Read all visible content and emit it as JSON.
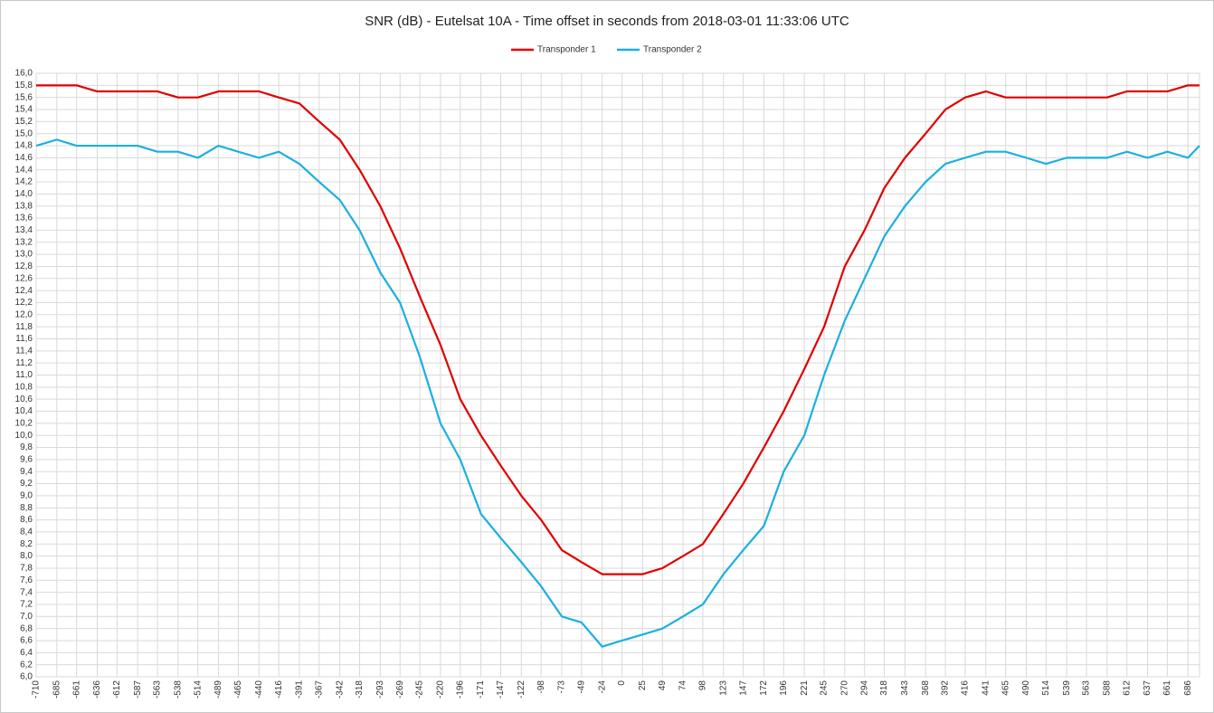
{
  "chart_data": {
    "type": "line",
    "title": "SNR (dB) - Eutelsat 10A - Time offset in seconds from 2018-03-01 11:33:06 UTC",
    "x": [
      -710,
      -685,
      -661,
      -636,
      -612,
      -587,
      -563,
      -538,
      -514,
      -489,
      -465,
      -440,
      -416,
      -391,
      -367,
      -342,
      -318,
      -293,
      -269,
      -245,
      -220,
      -196,
      -171,
      -147,
      -122,
      -98,
      -73,
      -49,
      -24,
      0,
      25,
      49,
      74,
      98,
      123,
      147,
      172,
      196,
      221,
      245,
      270,
      294,
      318,
      343,
      368,
      392,
      416,
      441,
      465,
      490,
      514,
      539,
      563,
      588,
      612,
      637,
      661,
      686,
      700
    ],
    "series": [
      {
        "name": "Transponder 1",
        "color": "#e00000",
        "values": [
          15.8,
          15.8,
          15.8,
          15.7,
          15.7,
          15.7,
          15.7,
          15.6,
          15.6,
          15.7,
          15.7,
          15.7,
          15.6,
          15.5,
          15.2,
          14.9,
          14.4,
          13.8,
          13.1,
          12.3,
          11.5,
          10.6,
          10.0,
          9.5,
          9.0,
          8.6,
          8.1,
          7.9,
          7.7,
          7.7,
          7.7,
          7.8,
          8.0,
          8.2,
          8.7,
          9.2,
          9.8,
          10.4,
          11.1,
          11.8,
          12.8,
          13.4,
          14.1,
          14.6,
          15.0,
          15.4,
          15.6,
          15.7,
          15.6,
          15.6,
          15.6,
          15.6,
          15.6,
          15.6,
          15.7,
          15.7,
          15.7,
          15.8,
          15.8
        ]
      },
      {
        "name": "Transponder 2",
        "color": "#1ab0e0",
        "values": [
          14.8,
          14.9,
          14.8,
          14.8,
          14.8,
          14.8,
          14.7,
          14.7,
          14.6,
          14.8,
          14.7,
          14.6,
          14.7,
          14.5,
          14.2,
          13.9,
          13.4,
          12.7,
          12.2,
          11.3,
          10.2,
          9.6,
          8.7,
          8.3,
          7.9,
          7.5,
          7.0,
          6.9,
          6.5,
          6.6,
          6.7,
          6.8,
          7.0,
          7.2,
          7.7,
          8.1,
          8.5,
          9.4,
          10.0,
          11.0,
          11.9,
          12.6,
          13.3,
          13.8,
          14.2,
          14.5,
          14.6,
          14.7,
          14.7,
          14.6,
          14.5,
          14.6,
          14.6,
          14.6,
          14.7,
          14.6,
          14.7,
          14.6,
          14.8
        ]
      }
    ],
    "xlim": [
      -710,
      700
    ],
    "xticks": [
      -710,
      -685,
      -661,
      -636,
      -612,
      -587,
      -563,
      -538,
      -514,
      -489,
      -465,
      -440,
      -416,
      -391,
      -367,
      -342,
      -318,
      -293,
      -269,
      -245,
      -220,
      -196,
      -171,
      -147,
      -122,
      -98,
      -73,
      -49,
      -24,
      0,
      25,
      49,
      74,
      98,
      123,
      147,
      172,
      196,
      221,
      245,
      270,
      294,
      318,
      343,
      368,
      392,
      416,
      441,
      465,
      490,
      514,
      539,
      563,
      588,
      612,
      637,
      661,
      686
    ],
    "ylim": [
      6.0,
      16.0
    ],
    "yticks": [
      {
        "value": 6.0,
        "label": "6,0"
      },
      {
        "value": 6.2,
        "label": "6,2"
      },
      {
        "value": 6.4,
        "label": "6,4"
      },
      {
        "value": 6.6,
        "label": "6,6"
      },
      {
        "value": 6.8,
        "label": "6,8"
      },
      {
        "value": 7.0,
        "label": "7,0"
      },
      {
        "value": 7.2,
        "label": "7,2"
      },
      {
        "value": 7.4,
        "label": "7,4"
      },
      {
        "value": 7.6,
        "label": "7,6"
      },
      {
        "value": 7.8,
        "label": "7,8"
      },
      {
        "value": 8.0,
        "label": "8,0"
      },
      {
        "value": 8.2,
        "label": "8,2"
      },
      {
        "value": 8.4,
        "label": "8,4"
      },
      {
        "value": 8.6,
        "label": "8,6"
      },
      {
        "value": 8.8,
        "label": "8,8"
      },
      {
        "value": 9.0,
        "label": "9,0"
      },
      {
        "value": 9.2,
        "label": "9,2"
      },
      {
        "value": 9.4,
        "label": "9,4"
      },
      {
        "value": 9.6,
        "label": "9,6"
      },
      {
        "value": 9.8,
        "label": "9,8"
      },
      {
        "value": 10.0,
        "label": "10,0"
      },
      {
        "value": 10.2,
        "label": "10,2"
      },
      {
        "value": 10.4,
        "label": "10,4"
      },
      {
        "value": 10.6,
        "label": "10,6"
      },
      {
        "value": 10.8,
        "label": "10,8"
      },
      {
        "value": 11.0,
        "label": "11,0"
      },
      {
        "value": 11.2,
        "label": "11,2"
      },
      {
        "value": 11.4,
        "label": "11,4"
      },
      {
        "value": 11.6,
        "label": "11,6"
      },
      {
        "value": 11.8,
        "label": "11,8"
      },
      {
        "value": 12.0,
        "label": "12,0"
      },
      {
        "value": 12.2,
        "label": "12,2"
      },
      {
        "value": 12.4,
        "label": "12,4"
      },
      {
        "value": 12.6,
        "label": "12,6"
      },
      {
        "value": 12.8,
        "label": "12,8"
      },
      {
        "value": 13.0,
        "label": "13,0"
      },
      {
        "value": 13.2,
        "label": "13,2"
      },
      {
        "value": 13.4,
        "label": "13,4"
      },
      {
        "value": 13.6,
        "label": "13,6"
      },
      {
        "value": 13.8,
        "label": "13,8"
      },
      {
        "value": 14.0,
        "label": "14,0"
      },
      {
        "value": 14.2,
        "label": "14,2"
      },
      {
        "value": 14.4,
        "label": "14,4"
      },
      {
        "value": 14.6,
        "label": "14,6"
      },
      {
        "value": 14.8,
        "label": "14,8"
      },
      {
        "value": 15.0,
        "label": "15,0"
      },
      {
        "value": 15.2,
        "label": "15,2"
      },
      {
        "value": 15.4,
        "label": "15,4"
      },
      {
        "value": 15.6,
        "label": "15,6"
      },
      {
        "value": 15.8,
        "label": "15,8"
      },
      {
        "value": 16.0,
        "label": "16,0"
      }
    ],
    "grid": true,
    "legend": "top"
  }
}
